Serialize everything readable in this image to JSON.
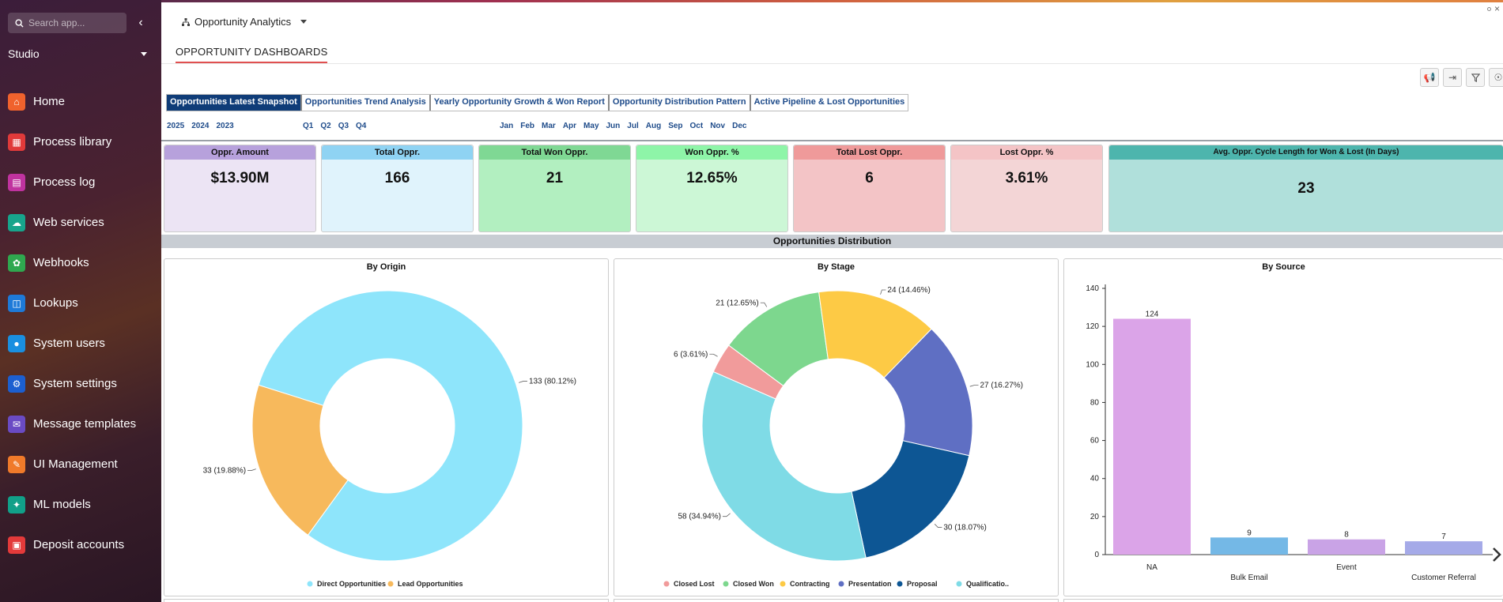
{
  "sidebar": {
    "search_placeholder": "Search app...",
    "workspace": "Studio",
    "items": [
      {
        "label": "Home",
        "icon": "home-icon",
        "color": "#f0622d"
      },
      {
        "label": "Process library",
        "icon": "process-library-icon",
        "color": "#e03a3a"
      },
      {
        "label": "Process log",
        "icon": "process-log-icon",
        "color": "#c0339f"
      },
      {
        "label": "Web services",
        "icon": "cloud-icon",
        "color": "#17a58c"
      },
      {
        "label": "Webhooks",
        "icon": "webhooks-icon",
        "color": "#2fa84f"
      },
      {
        "label": "Lookups",
        "icon": "lookups-icon",
        "color": "#1e7ad8"
      },
      {
        "label": "System users",
        "icon": "users-icon",
        "color": "#1a8fe0"
      },
      {
        "label": "System settings",
        "icon": "settings-icon",
        "color": "#1c5fd0"
      },
      {
        "label": "Message templates",
        "icon": "message-templates-icon",
        "color": "#6a4bc4"
      },
      {
        "label": "UI Management",
        "icon": "ui-management-icon",
        "color": "#f07a2a"
      },
      {
        "label": "ML models",
        "icon": "ml-models-icon",
        "color": "#11a089"
      },
      {
        "label": "Deposit accounts",
        "icon": "deposit-accounts-icon",
        "color": "#e33a3a"
      }
    ]
  },
  "header": {
    "dashboard_title": "Opportunity Analytics",
    "main_tab": "OPPORTUNITY DASHBOARDS"
  },
  "toolbar": {
    "buttons": [
      "megaphone-icon",
      "export-icon",
      "filter-icon",
      "lightbulb-icon"
    ]
  },
  "subtabs": [
    "Opportunities Latest Snapshot",
    "Opportunities Trend Analysis",
    "Yearly Opportunity Growth & Won Report",
    "Opportunity Distribution Pattern",
    "Active Pipeline & Lost Opportunities"
  ],
  "filters": {
    "years": [
      "2025",
      "2024",
      "2023"
    ],
    "quarters": [
      "Q1",
      "Q2",
      "Q3",
      "Q4"
    ],
    "months": [
      "Jan",
      "Feb",
      "Mar",
      "Apr",
      "May",
      "Jun",
      "Jul",
      "Aug",
      "Sep",
      "Oct",
      "Nov",
      "Dec"
    ]
  },
  "kpis": [
    {
      "label": "Oppr. Amount",
      "value": "$13.90M",
      "head_color": "#b7a1dc",
      "body_color": "#ece4f4"
    },
    {
      "label": "Total Oppr.",
      "value": "166",
      "head_color": "#8fd3f3",
      "body_color": "#e0f3fc"
    },
    {
      "label": "Total Won Oppr.",
      "value": "21",
      "head_color": "#7fd894",
      "body_color": "#b2efc0"
    },
    {
      "label": "Won Oppr. %",
      "value": "12.65%",
      "head_color": "#8ef5a8",
      "body_color": "#ccf7d6"
    },
    {
      "label": "Total Lost Oppr.",
      "value": "6",
      "head_color": "#ef9a9a",
      "body_color": "#f3c4c6"
    },
    {
      "label": "Lost Oppr. %",
      "value": "3.61%",
      "head_color": "#f4c4c6",
      "body_color": "#f3d5d6"
    },
    {
      "label": "Avg. Oppr. Cycle Length for Won & Lost (In Days)",
      "value": "23",
      "head_color": "#4db5ad",
      "body_color": "#b0e0db"
    }
  ],
  "section_title": "Opportunities Distribution",
  "chart_data": [
    {
      "type": "pie",
      "title": "By Origin",
      "categories": [
        "Direct Opportunities",
        "Lead Opportunities"
      ],
      "values": [
        133,
        33
      ],
      "labels": [
        "133 (80.12%)",
        "33 (19.88%)"
      ],
      "colors": [
        "#8ee5fb",
        "#f7b95c"
      ],
      "donut": true,
      "legend": "bottom"
    },
    {
      "type": "pie",
      "title": "By Stage",
      "categories": [
        "Closed Lost",
        "Closed Won",
        "Contracting",
        "Presentation",
        "Proposal",
        "Qualification"
      ],
      "legend_labels": [
        "Closed Lost",
        "Closed Won",
        "Contracting",
        "Presentation",
        "Proposal",
        "Qualificatio.."
      ],
      "values": [
        6,
        21,
        24,
        27,
        30,
        58
      ],
      "labels": [
        "6 (3.61%)",
        "21 (12.65%)",
        "24 (14.46%)",
        "27 (16.27%)",
        "30 (18.07%)",
        "58 (34.94%)"
      ],
      "colors": [
        "#f19b9b",
        "#7dd78e",
        "#fdca45",
        "#5f6fc3",
        "#0d5694",
        "#7fdbe6"
      ],
      "donut": true,
      "legend": "bottom"
    },
    {
      "type": "bar",
      "title": "By Source",
      "categories": [
        "NA",
        "Bulk Email",
        "Event",
        "Customer Referral"
      ],
      "values": [
        124,
        9,
        8,
        7
      ],
      "colors": [
        "#dba4e8",
        "#74b8e6",
        "#c9a3e6",
        "#a5aae8"
      ],
      "ylim": [
        0,
        140
      ],
      "yticks": [
        0,
        20,
        40,
        60,
        80,
        100,
        120,
        140
      ],
      "grid": false
    }
  ]
}
